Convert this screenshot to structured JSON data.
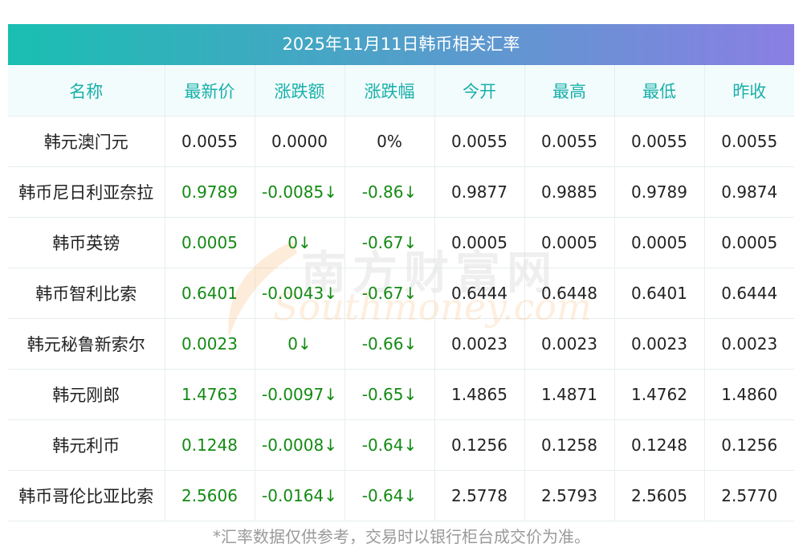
{
  "title": "2025年11月11日韩币相关汇率",
  "headers": [
    "名称",
    "最新价",
    "涨跌额",
    "涨跌幅",
    "今开",
    "最高",
    "最低",
    "昨收"
  ],
  "rows": [
    {
      "name": "韩元澳门元",
      "latest": "0.0055",
      "change": "0.0000",
      "pct": "0%",
      "open": "0.0055",
      "high": "0.0055",
      "low": "0.0055",
      "prev": "0.0055",
      "down": false
    },
    {
      "name": "韩币尼日利亚奈拉",
      "latest": "0.9789",
      "change": "-0.0085↓",
      "pct": "-0.86↓",
      "open": "0.9877",
      "high": "0.9885",
      "low": "0.9789",
      "prev": "0.9874",
      "down": true
    },
    {
      "name": "韩币英镑",
      "latest": "0.0005",
      "change": "0↓",
      "pct": "-0.67↓",
      "open": "0.0005",
      "high": "0.0005",
      "low": "0.0005",
      "prev": "0.0005",
      "down": true
    },
    {
      "name": "韩币智利比索",
      "latest": "0.6401",
      "change": "-0.0043↓",
      "pct": "-0.67↓",
      "open": "0.6444",
      "high": "0.6448",
      "low": "0.6401",
      "prev": "0.6444",
      "down": true
    },
    {
      "name": "韩元秘鲁新索尔",
      "latest": "0.0023",
      "change": "0↓",
      "pct": "-0.66↓",
      "open": "0.0023",
      "high": "0.0023",
      "low": "0.0023",
      "prev": "0.0023",
      "down": true
    },
    {
      "name": "韩元刚郎",
      "latest": "1.4763",
      "change": "-0.0097↓",
      "pct": "-0.65↓",
      "open": "1.4865",
      "high": "1.4871",
      "low": "1.4762",
      "prev": "1.4860",
      "down": true
    },
    {
      "name": "韩元利币",
      "latest": "0.1248",
      "change": "-0.0008↓",
      "pct": "-0.64↓",
      "open": "0.1256",
      "high": "0.1258",
      "low": "0.1248",
      "prev": "0.1256",
      "down": true
    },
    {
      "name": "韩币哥伦比亚比索",
      "latest": "2.5606",
      "change": "-0.0164↓",
      "pct": "-0.64↓",
      "open": "2.5778",
      "high": "2.5793",
      "low": "2.5605",
      "prev": "2.5770",
      "down": true
    }
  ],
  "footnote": "*汇率数据仅供参考，交易时以银行柜台成交价为准。",
  "watermark": {
    "cn": "南方财富网",
    "en": "Southmoney.com"
  },
  "colors": {
    "header_text": "#18b0a9",
    "down": "#138a13",
    "gradient_start": "#19bfb1",
    "gradient_end": "#8a7fe3"
  }
}
